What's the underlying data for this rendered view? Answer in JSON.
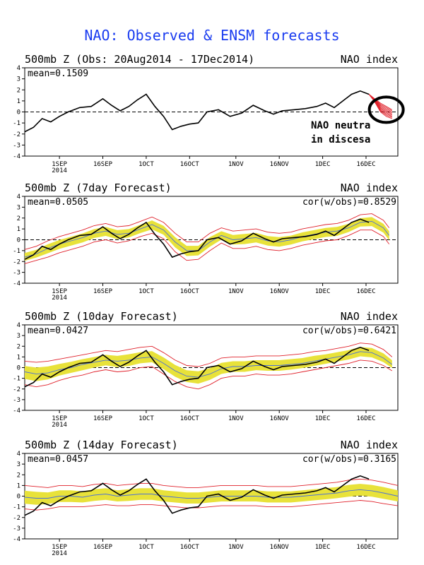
{
  "page": {
    "title": "NAO: Observed & ENSM forecasts"
  },
  "x_ticks": [
    {
      "label": "1SEP",
      "sub": "2014"
    },
    {
      "label": "16SEP",
      "sub": ""
    },
    {
      "label": "1OCT",
      "sub": ""
    },
    {
      "label": "16OCT",
      "sub": ""
    },
    {
      "label": "1NOV",
      "sub": ""
    },
    {
      "label": "16NOV",
      "sub": ""
    },
    {
      "label": "1DEC",
      "sub": ""
    },
    {
      "label": "16DEC",
      "sub": ""
    }
  ],
  "y_ticks": [
    "-4",
    "-3",
    "-2",
    "-1",
    "0",
    "1",
    "2",
    "3",
    "4"
  ],
  "annotation": {
    "line1": "NAO neutra",
    "line2": "in discesa"
  },
  "chart_data": [
    {
      "type": "line",
      "title": "500mb Z (Obs: 20Aug2014 - 17Dec2014)",
      "right_title": "NAO index",
      "mean_label": "mean=0.1509",
      "cor_label": "",
      "ylim": [
        -4,
        4
      ],
      "x_range": [
        "2014-08-20",
        "2014-12-27"
      ],
      "observed": {
        "x": [
          "2014-08-20",
          "2014-08-23",
          "2014-08-26",
          "2014-08-29",
          "2014-09-01",
          "2014-09-04",
          "2014-09-08",
          "2014-09-12",
          "2014-09-16",
          "2014-09-19",
          "2014-09-22",
          "2014-09-25",
          "2014-09-28",
          "2014-10-01",
          "2014-10-04",
          "2014-10-07",
          "2014-10-10",
          "2014-10-13",
          "2014-10-16",
          "2014-10-19",
          "2014-10-22",
          "2014-10-26",
          "2014-10-30",
          "2014-11-03",
          "2014-11-07",
          "2014-11-11",
          "2014-11-14",
          "2014-11-17",
          "2014-11-21",
          "2014-11-25",
          "2014-11-29",
          "2014-12-02",
          "2014-12-05",
          "2014-12-08",
          "2014-12-11",
          "2014-12-14",
          "2014-12-17"
        ],
        "y": [
          -1.8,
          -1.4,
          -0.6,
          -0.9,
          -0.4,
          0.0,
          0.4,
          0.5,
          1.2,
          0.6,
          0.1,
          0.5,
          1.1,
          1.6,
          0.5,
          -0.4,
          -1.6,
          -1.3,
          -1.1,
          -1.0,
          0.0,
          0.2,
          -0.4,
          -0.1,
          0.6,
          0.1,
          -0.2,
          0.1,
          0.2,
          0.3,
          0.5,
          0.8,
          0.4,
          1.0,
          1.6,
          1.9,
          1.6
        ]
      },
      "forecast": {
        "x": [
          "2014-12-17",
          "2014-12-19",
          "2014-12-21",
          "2014-12-23",
          "2014-12-25"
        ],
        "upper": [
          1.6,
          1.2,
          0.8,
          0.5,
          0.2
        ],
        "lower": [
          1.6,
          0.9,
          0.0,
          -0.4,
          -0.6
        ],
        "mean": [
          1.6,
          1.0,
          0.4,
          0.0,
          -0.3
        ]
      }
    },
    {
      "type": "line",
      "title": "500mb Z (7day Forecast)",
      "right_title": "NAO index",
      "mean_label": "mean=0.0505",
      "cor_label": "cor(w/obs)=0.8529",
      "ylim": [
        -4,
        4
      ],
      "x_range": [
        "2014-08-20",
        "2014-12-27"
      ],
      "observed": {
        "x": [
          "2014-08-20",
          "2014-08-23",
          "2014-08-26",
          "2014-08-29",
          "2014-09-01",
          "2014-09-04",
          "2014-09-08",
          "2014-09-12",
          "2014-09-16",
          "2014-09-19",
          "2014-09-22",
          "2014-09-25",
          "2014-09-28",
          "2014-10-01",
          "2014-10-04",
          "2014-10-07",
          "2014-10-10",
          "2014-10-13",
          "2014-10-16",
          "2014-10-19",
          "2014-10-22",
          "2014-10-26",
          "2014-10-30",
          "2014-11-03",
          "2014-11-07",
          "2014-11-11",
          "2014-11-14",
          "2014-11-17",
          "2014-11-21",
          "2014-11-25",
          "2014-11-29",
          "2014-12-02",
          "2014-12-05",
          "2014-12-08",
          "2014-12-11",
          "2014-12-14",
          "2014-12-17"
        ],
        "y": [
          -1.8,
          -1.4,
          -0.6,
          -0.9,
          -0.4,
          0.0,
          0.4,
          0.5,
          1.2,
          0.6,
          0.1,
          0.5,
          1.1,
          1.6,
          0.5,
          -0.4,
          -1.6,
          -1.3,
          -1.1,
          -1.0,
          0.0,
          0.2,
          -0.4,
          -0.1,
          0.6,
          0.1,
          -0.2,
          0.1,
          0.2,
          0.3,
          0.5,
          0.8,
          0.4,
          1.0,
          1.6,
          1.9,
          1.6
        ]
      },
      "forecast": {
        "x": [
          "2014-08-20",
          "2014-08-24",
          "2014-08-28",
          "2014-09-01",
          "2014-09-05",
          "2014-09-09",
          "2014-09-13",
          "2014-09-17",
          "2014-09-21",
          "2014-09-25",
          "2014-09-29",
          "2014-10-03",
          "2014-10-07",
          "2014-10-11",
          "2014-10-15",
          "2014-10-19",
          "2014-10-23",
          "2014-10-27",
          "2014-10-31",
          "2014-11-04",
          "2014-11-08",
          "2014-11-12",
          "2014-11-16",
          "2014-11-20",
          "2014-11-24",
          "2014-11-28",
          "2014-12-02",
          "2014-12-06",
          "2014-12-10",
          "2014-12-14",
          "2014-12-18",
          "2014-12-22",
          "2014-12-24"
        ],
        "upper": [
          -0.9,
          -0.6,
          -0.1,
          0.3,
          0.6,
          0.9,
          1.3,
          1.5,
          1.2,
          1.3,
          1.7,
          2.1,
          1.6,
          0.6,
          -0.2,
          -0.2,
          0.6,
          1.1,
          0.8,
          0.9,
          1.0,
          0.7,
          0.6,
          0.7,
          1.0,
          1.2,
          1.4,
          1.5,
          1.8,
          2.3,
          2.4,
          1.8,
          1.1
        ],
        "lower": [
          -2.2,
          -1.9,
          -1.6,
          -1.2,
          -0.9,
          -0.6,
          -0.2,
          0.0,
          -0.3,
          -0.1,
          0.3,
          0.6,
          0.1,
          -1.1,
          -1.9,
          -1.8,
          -1.0,
          -0.3,
          -0.8,
          -0.8,
          -0.6,
          -0.9,
          -1.0,
          -0.8,
          -0.5,
          -0.3,
          -0.1,
          0.0,
          0.4,
          0.9,
          0.9,
          0.3,
          -0.4
        ],
        "mean": [
          -1.6,
          -1.3,
          -0.8,
          -0.4,
          -0.1,
          0.2,
          0.6,
          0.8,
          0.5,
          0.6,
          1.0,
          1.4,
          0.9,
          -0.2,
          -1.0,
          -1.0,
          -0.2,
          0.4,
          0.0,
          0.1,
          0.2,
          -0.1,
          -0.2,
          0.0,
          0.3,
          0.5,
          0.7,
          0.8,
          1.1,
          1.6,
          1.7,
          1.1,
          0.4
        ]
      }
    },
    {
      "type": "line",
      "title": "500mb Z (10day Forecast)",
      "right_title": "NAO index",
      "mean_label": "mean=0.0427",
      "cor_label": "cor(w/obs)=0.6421",
      "ylim": [
        -4,
        4
      ],
      "x_range": [
        "2014-08-20",
        "2014-12-27"
      ],
      "observed": {
        "x": [
          "2014-08-20",
          "2014-08-23",
          "2014-08-26",
          "2014-08-29",
          "2014-09-01",
          "2014-09-04",
          "2014-09-08",
          "2014-09-12",
          "2014-09-16",
          "2014-09-19",
          "2014-09-22",
          "2014-09-25",
          "2014-09-28",
          "2014-10-01",
          "2014-10-04",
          "2014-10-07",
          "2014-10-10",
          "2014-10-13",
          "2014-10-16",
          "2014-10-19",
          "2014-10-22",
          "2014-10-26",
          "2014-10-30",
          "2014-11-03",
          "2014-11-07",
          "2014-11-11",
          "2014-11-14",
          "2014-11-17",
          "2014-11-21",
          "2014-11-25",
          "2014-11-29",
          "2014-12-02",
          "2014-12-05",
          "2014-12-08",
          "2014-12-11",
          "2014-12-14",
          "2014-12-17"
        ],
        "y": [
          -1.8,
          -1.4,
          -0.6,
          -0.9,
          -0.4,
          0.0,
          0.4,
          0.5,
          1.2,
          0.6,
          0.1,
          0.5,
          1.1,
          1.6,
          0.5,
          -0.4,
          -1.6,
          -1.3,
          -1.1,
          -1.0,
          0.0,
          0.2,
          -0.4,
          -0.1,
          0.6,
          0.1,
          -0.2,
          0.1,
          0.2,
          0.3,
          0.5,
          0.8,
          0.4,
          1.0,
          1.6,
          1.9,
          1.6
        ]
      },
      "forecast": {
        "x": [
          "2014-08-20",
          "2014-08-24",
          "2014-08-28",
          "2014-09-01",
          "2014-09-05",
          "2014-09-09",
          "2014-09-13",
          "2014-09-17",
          "2014-09-21",
          "2014-09-25",
          "2014-09-29",
          "2014-10-03",
          "2014-10-07",
          "2014-10-11",
          "2014-10-15",
          "2014-10-19",
          "2014-10-23",
          "2014-10-27",
          "2014-10-31",
          "2014-11-04",
          "2014-11-08",
          "2014-11-12",
          "2014-11-16",
          "2014-11-20",
          "2014-11-24",
          "2014-11-28",
          "2014-12-02",
          "2014-12-06",
          "2014-12-10",
          "2014-12-14",
          "2014-12-18",
          "2014-12-22",
          "2014-12-25"
        ],
        "upper": [
          0.6,
          0.5,
          0.6,
          0.8,
          1.0,
          1.2,
          1.4,
          1.6,
          1.5,
          1.7,
          1.9,
          2.0,
          1.4,
          0.7,
          0.2,
          0.1,
          0.4,
          0.9,
          1.0,
          1.0,
          1.1,
          1.1,
          1.1,
          1.2,
          1.3,
          1.5,
          1.6,
          1.8,
          2.0,
          2.3,
          2.2,
          1.7,
          1.0
        ],
        "lower": [
          -1.6,
          -1.8,
          -1.6,
          -1.2,
          -0.9,
          -0.7,
          -0.4,
          -0.2,
          -0.4,
          -0.3,
          0.0,
          0.1,
          -0.6,
          -1.3,
          -1.8,
          -2.0,
          -1.6,
          -1.0,
          -0.8,
          -0.8,
          -0.6,
          -0.7,
          -0.7,
          -0.6,
          -0.4,
          -0.2,
          0.0,
          0.2,
          0.4,
          0.7,
          0.6,
          0.2,
          -0.3
        ],
        "mean": [
          -0.4,
          -0.6,
          -0.5,
          -0.2,
          0.0,
          0.3,
          0.5,
          0.7,
          0.6,
          0.7,
          0.9,
          1.0,
          0.4,
          -0.3,
          -0.8,
          -0.9,
          -0.6,
          -0.1,
          0.1,
          0.1,
          0.2,
          0.2,
          0.2,
          0.3,
          0.4,
          0.6,
          0.8,
          1.0,
          1.2,
          1.5,
          1.4,
          0.9,
          0.3
        ]
      }
    },
    {
      "type": "line",
      "title": "500mb Z (14day Forecast)",
      "right_title": "NAO index",
      "mean_label": "mean=0.0457",
      "cor_label": "cor(w/obs)=0.3165",
      "ylim": [
        -4,
        4
      ],
      "x_range": [
        "2014-08-20",
        "2014-12-27"
      ],
      "observed": {
        "x": [
          "2014-08-20",
          "2014-08-23",
          "2014-08-26",
          "2014-08-29",
          "2014-09-01",
          "2014-09-04",
          "2014-09-08",
          "2014-09-12",
          "2014-09-16",
          "2014-09-19",
          "2014-09-22",
          "2014-09-25",
          "2014-09-28",
          "2014-10-01",
          "2014-10-04",
          "2014-10-07",
          "2014-10-10",
          "2014-10-13",
          "2014-10-16",
          "2014-10-19",
          "2014-10-22",
          "2014-10-26",
          "2014-10-30",
          "2014-11-03",
          "2014-11-07",
          "2014-11-11",
          "2014-11-14",
          "2014-11-17",
          "2014-11-21",
          "2014-11-25",
          "2014-11-29",
          "2014-12-02",
          "2014-12-05",
          "2014-12-08",
          "2014-12-11",
          "2014-12-14",
          "2014-12-17"
        ],
        "y": [
          -1.8,
          -1.4,
          -0.6,
          -0.9,
          -0.4,
          0.0,
          0.4,
          0.5,
          1.2,
          0.6,
          0.1,
          0.5,
          1.1,
          1.6,
          0.5,
          -0.4,
          -1.6,
          -1.3,
          -1.1,
          -1.0,
          0.0,
          0.2,
          -0.4,
          -0.1,
          0.6,
          0.1,
          -0.2,
          0.1,
          0.2,
          0.3,
          0.5,
          0.8,
          0.4,
          1.0,
          1.6,
          1.9,
          1.6
        ]
      },
      "forecast": {
        "x": [
          "2014-08-20",
          "2014-08-24",
          "2014-08-28",
          "2014-09-01",
          "2014-09-05",
          "2014-09-09",
          "2014-09-13",
          "2014-09-17",
          "2014-09-21",
          "2014-09-25",
          "2014-09-29",
          "2014-10-03",
          "2014-10-07",
          "2014-10-11",
          "2014-10-15",
          "2014-10-19",
          "2014-10-23",
          "2014-10-27",
          "2014-10-31",
          "2014-11-04",
          "2014-11-08",
          "2014-11-12",
          "2014-11-16",
          "2014-11-20",
          "2014-11-24",
          "2014-11-28",
          "2014-12-02",
          "2014-12-06",
          "2014-12-10",
          "2014-12-14",
          "2014-12-18",
          "2014-12-22",
          "2014-12-27"
        ],
        "upper": [
          1.0,
          0.9,
          0.8,
          1.0,
          1.0,
          0.9,
          1.1,
          1.2,
          1.0,
          1.1,
          1.2,
          1.2,
          1.0,
          0.9,
          0.8,
          0.8,
          0.9,
          1.0,
          1.0,
          1.0,
          1.0,
          0.9,
          0.9,
          0.9,
          1.0,
          1.1,
          1.2,
          1.3,
          1.5,
          1.6,
          1.5,
          1.3,
          1.0
        ],
        "lower": [
          -1.2,
          -1.3,
          -1.2,
          -1.0,
          -1.0,
          -1.0,
          -0.9,
          -0.8,
          -0.9,
          -0.9,
          -0.8,
          -0.8,
          -0.9,
          -1.0,
          -1.1,
          -1.1,
          -1.0,
          -0.9,
          -0.9,
          -0.9,
          -0.9,
          -1.0,
          -1.0,
          -1.0,
          -0.9,
          -0.8,
          -0.7,
          -0.6,
          -0.5,
          -0.4,
          -0.5,
          -0.7,
          -0.9
        ],
        "mean": [
          -0.1,
          -0.2,
          -0.2,
          0.0,
          0.0,
          -0.1,
          0.1,
          0.2,
          0.0,
          0.1,
          0.2,
          0.2,
          0.0,
          -0.1,
          -0.2,
          -0.2,
          -0.1,
          0.0,
          0.0,
          0.0,
          0.0,
          -0.1,
          -0.1,
          -0.1,
          0.0,
          0.1,
          0.2,
          0.3,
          0.5,
          0.6,
          0.5,
          0.3,
          0.0
        ]
      }
    }
  ]
}
